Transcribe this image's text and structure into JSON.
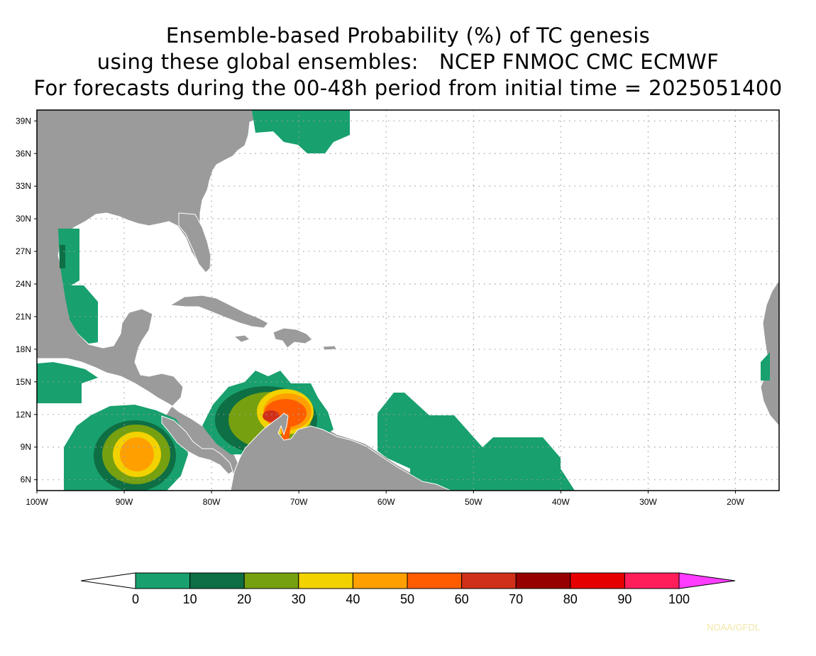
{
  "title": {
    "line1": "Ensemble-based Probability (%) of TC genesis",
    "line2": "using these global ensembles:   NCEP FNMOC CMC ECMWF",
    "line3": "For forecasts during the 00-48h period from initial time = 2025051400"
  },
  "map": {
    "lon_range": [
      -100,
      -15
    ],
    "lat_range": [
      5,
      40
    ],
    "lat_tick_labels": [
      "39N",
      "36N",
      "33N",
      "30N",
      "27N",
      "24N",
      "21N",
      "18N",
      "15N",
      "12N",
      "9N",
      "6N"
    ],
    "lon_tick_labels": [
      "100W",
      "90W",
      "80W",
      "70W",
      "60W",
      "50W",
      "40W",
      "30W",
      "20W"
    ],
    "land_color": "#9b9b9b",
    "ocean_color": "#ffffff",
    "border_color": "#ffffff"
  },
  "colorbar": {
    "labels": [
      "0",
      "10",
      "20",
      "30",
      "40",
      "50",
      "60",
      "70",
      "80",
      "90",
      "100"
    ],
    "colors": [
      "#18a06e",
      "#0e6e44",
      "#76a010",
      "#f2d200",
      "#ffa000",
      "#ff5c00",
      "#d0301a",
      "#960000",
      "#e60000",
      "#ff1e5a"
    ],
    "below_color": "#ffffff",
    "above_color": "#ff3cff"
  },
  "credit": "NOAA/GFDL"
}
